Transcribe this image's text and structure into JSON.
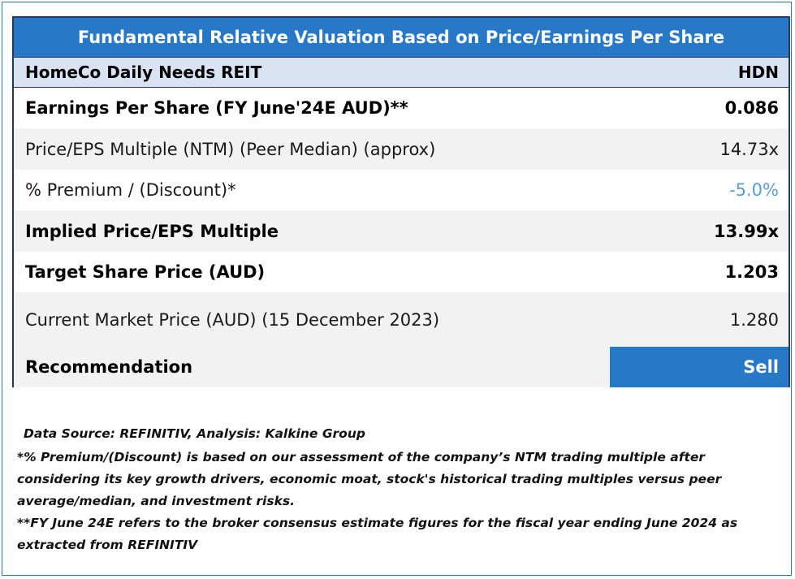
{
  "title": "Fundamental Relative Valuation Based on Price/Earnings Per Share",
  "company": {
    "name": "HomeCo Daily Needs REIT",
    "ticker": "HDN"
  },
  "rows": [
    {
      "label": "Earnings Per Share (FY June'24E AUD)**",
      "value": "0.086"
    },
    {
      "label": "Price/EPS Multiple (NTM) (Peer Median) (approx)",
      "value": "14.73x"
    },
    {
      "label": "% Premium / (Discount)*",
      "value": "-5.0%"
    },
    {
      "label": "Implied Price/EPS Multiple",
      "value": "13.99x"
    },
    {
      "label": "Target Share Price (AUD)",
      "value": "1.203"
    },
    {
      "label": "Current Market Price (AUD) (15 December 2023)",
      "value": "1.280"
    }
  ],
  "recommendation": {
    "label": "Recommendation",
    "value": "Sell"
  },
  "notes": {
    "source": "Data Source: REFINITIV, Analysis: Kalkine Group",
    "premium_note": "*% Premium/(Discount) is based on our assessment of the company’s NTM trading multiple after considering its key growth drivers, economic moat, stock's historical trading multiples versus peer average/median, and investment risks.",
    "fy_note": "**FY June 24E refers to the broker consensus estimate figures for the fiscal year ending June 2024 as extracted from REFINITIV"
  },
  "colors": {
    "header_blue": "#2878c8",
    "subheader_light_blue": "#dae3f3",
    "border_navy": "#1f3864",
    "negative_value_blue": "#5b9bd5"
  }
}
